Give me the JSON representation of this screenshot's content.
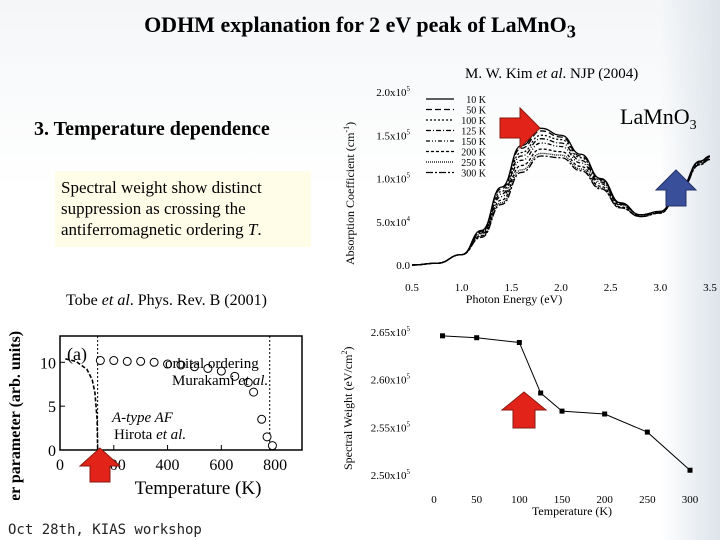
{
  "slide": {
    "title": "ODHM explanation for 2 eV peak of LaMnO",
    "title_sub": "3",
    "section": "3. Temperature dependence",
    "note_prefix": "Spectral weight show distinct suppression as crossing the antiferromagnetic ordering ",
    "note_T": "T",
    "note_suffix": ".",
    "citation_prefix": "M. W. Kim ",
    "citation_etal": "et al",
    "citation_suffix": ". NJP (2004)",
    "tobe_prefix": "Tobe ",
    "tobe_etal": "et al",
    "tobe_suffix": ". Phys. Rev. B (2001)",
    "footer": "Oct 28th, KIAS workshop"
  },
  "colors": {
    "arrow_red": "#e2231a",
    "arrow_blue": "#3a4f9a",
    "note_bg": "#fffde8"
  },
  "chart_data": [
    {
      "type": "line",
      "ylabel_main": "Absorption Coefficient (cm",
      "ylabel_sup": "-1",
      "ylabel_end": ")",
      "xlabel": "Photon Energy (eV)",
      "x_ticks": [
        "0.5",
        "1.0",
        "1.5",
        "2.0",
        "2.5",
        "3.0",
        "3.5"
      ],
      "y_ticks": [
        {
          "mant": "0.0",
          "exp": ""
        },
        {
          "mant": "5.0x10",
          "exp": "4"
        },
        {
          "mant": "1.0x10",
          "exp": "5"
        },
        {
          "mant": "1.5x10",
          "exp": "5"
        },
        {
          "mant": "2.0x10",
          "exp": "5"
        }
      ],
      "xlim": [
        0.5,
        3.5
      ],
      "ylim": [
        0,
        200000
      ],
      "label_main": "La",
      "label_rest": "MnO",
      "label_sub": "3",
      "legend": [
        "10 K",
        "50 K",
        "100 K",
        "125 K",
        "150 K",
        "200 K",
        "250 K",
        "300 K"
      ],
      "x": [
        0.5,
        0.75,
        1.0,
        1.2,
        1.4,
        1.6,
        1.8,
        2.0,
        2.2,
        2.4,
        2.6,
        2.8,
        3.0,
        3.2,
        3.4,
        3.5
      ],
      "series": [
        {
          "name": "10 K",
          "values": [
            0,
            2000,
            12000,
            40000,
            90000,
            138000,
            158000,
            150000,
            128000,
            100000,
            72000,
            58000,
            62000,
            90000,
            120000,
            126000
          ]
        },
        {
          "name": "50 K",
          "values": [
            0,
            2000,
            12000,
            39000,
            88000,
            135000,
            155000,
            148000,
            126000,
            99000,
            71000,
            58000,
            62000,
            90000,
            120000,
            126000
          ]
        },
        {
          "name": "100 K",
          "values": [
            0,
            2000,
            12000,
            38000,
            85000,
            130000,
            150000,
            145000,
            124000,
            98000,
            71000,
            58000,
            62000,
            89000,
            119000,
            125000
          ]
        },
        {
          "name": "125 K",
          "values": [
            0,
            2000,
            12000,
            37000,
            82000,
            126000,
            146000,
            141000,
            121000,
            96000,
            70000,
            58000,
            61000,
            89000,
            119000,
            125000
          ]
        },
        {
          "name": "150 K",
          "values": [
            0,
            2000,
            12000,
            36000,
            79000,
            121000,
            141000,
            137000,
            118000,
            94000,
            69000,
            57000,
            61000,
            88000,
            118000,
            124000
          ]
        },
        {
          "name": "200 K",
          "values": [
            0,
            2000,
            12000,
            34000,
            75000,
            115000,
            134000,
            131000,
            114000,
            91000,
            67000,
            56000,
            60000,
            87000,
            117000,
            123000
          ]
        },
        {
          "name": "250 K",
          "values": [
            0,
            2000,
            12000,
            33000,
            72000,
            110000,
            129000,
            127000,
            111000,
            89000,
            66000,
            56000,
            60000,
            87000,
            116000,
            122000
          ]
        },
        {
          "name": "300 K",
          "values": [
            0,
            2000,
            12000,
            32000,
            70000,
            107000,
            126000,
            124000,
            109000,
            88000,
            66000,
            56000,
            60000,
            86000,
            116000,
            122000
          ]
        }
      ]
    },
    {
      "type": "line",
      "ylabel_main": "Spectral Weight (eV/cm",
      "ylabel_sup": "2",
      "ylabel_end": ")",
      "xlabel": "Temperature (K)",
      "x_ticks": [
        "0",
        "50",
        "100",
        "150",
        "200",
        "250",
        "300"
      ],
      "y_ticks": [
        {
          "mant": "2.50x10",
          "exp": "5"
        },
        {
          "mant": "2.55x10",
          "exp": "5"
        },
        {
          "mant": "2.60x10",
          "exp": "5"
        },
        {
          "mant": "2.65x10",
          "exp": "5"
        }
      ],
      "xlim": [
        0,
        300
      ],
      "ylim": [
        250000,
        265000
      ],
      "x": [
        10,
        50,
        100,
        125,
        150,
        200,
        250,
        300
      ],
      "values": [
        264600,
        264400,
        263900,
        258600,
        256700,
        256400,
        254500,
        250500
      ]
    },
    {
      "type": "scatter",
      "panel_label": "(a)",
      "ylabel": "order parameter (arb. units)",
      "xlabel": "Temperature (K)",
      "x_ticks": [
        "0",
        "200",
        "400",
        "600",
        "800"
      ],
      "y_ticks": [
        "0",
        "5",
        "10"
      ],
      "xlim": [
        0,
        900
      ],
      "ylim": [
        0,
        13
      ],
      "ann_orbital_1": "orbital ordering",
      "ann_orbital_2a": "Murakami ",
      "ann_orbital_2b": "et al.",
      "ann_af_1": "A-type AF",
      "ann_af_2a": "Hirota ",
      "ann_af_2b": "et al.",
      "af_curve_T": [
        20,
        60,
        100,
        120,
        130,
        138,
        140
      ],
      "af_curve_v": [
        10.4,
        10.1,
        9.2,
        8.0,
        6.5,
        3.5,
        0
      ],
      "orbital_T": [
        150,
        200,
        250,
        300,
        350,
        400,
        450,
        500,
        550,
        600,
        650,
        700,
        720,
        750,
        770,
        790
      ],
      "orbital_v": [
        10.2,
        10.2,
        10.1,
        10.1,
        10.0,
        9.8,
        9.7,
        9.5,
        9.3,
        9.0,
        8.4,
        7.7,
        6.6,
        3.5,
        1.5,
        0.5
      ]
    }
  ]
}
